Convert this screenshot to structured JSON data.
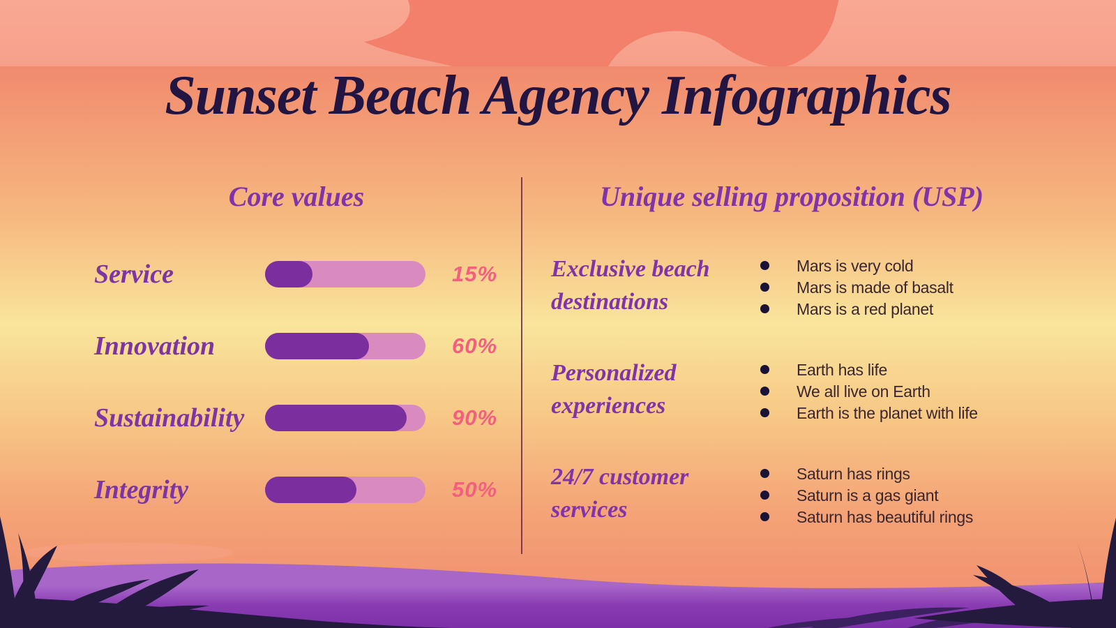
{
  "title": "Sunset Beach Agency Infographics",
  "core_values": {
    "heading": "Core values",
    "rows": [
      {
        "label": "Service",
        "value": 15,
        "percent_label": "15%"
      },
      {
        "label": "Innovation",
        "value": 60,
        "percent_label": "60%"
      },
      {
        "label": "Sustainability",
        "value": 90,
        "percent_label": "90%"
      },
      {
        "label": "Integrity",
        "value": 50,
        "percent_label": "50%"
      }
    ]
  },
  "usp": {
    "heading": "Unique selling proposition (USP)",
    "groups": [
      {
        "title": "Exclusive beach destinations",
        "bullets": [
          "Mars is very cold",
          "Mars is made of basalt",
          "Mars is a red planet"
        ]
      },
      {
        "title": "Personalized experiences",
        "bullets": [
          "Earth has life",
          "We all live on Earth",
          "Earth is the planet with life"
        ]
      },
      {
        "title": "24/7 customer services",
        "bullets": [
          "Saturn has rings",
          "Saturn is a gas giant",
          "Saturn has beautiful rings"
        ]
      }
    ]
  },
  "colors": {
    "title_ink": "#221541",
    "heading_purple": "#8134a8",
    "bar_fill": "#7b2f9e",
    "bar_track": "#d98abf",
    "percent_pink": "#f25f7f",
    "bullet_ink": "#3a262e",
    "bullet_dot": "#1b1335",
    "divider": "#68264f",
    "sea_purple_top": "#a866c9",
    "sea_purple_bottom": "#7c2fa8",
    "silhouette_navy": "#241a3e",
    "sky_band": "#f8a591",
    "sun_cloud": "#f2806a"
  },
  "chart_data": {
    "type": "bar",
    "categories": [
      "Service",
      "Innovation",
      "Sustainability",
      "Integrity"
    ],
    "values": [
      15,
      60,
      90,
      50
    ],
    "title": "Core values",
    "xlabel": "",
    "ylabel": "",
    "xlim": [
      0,
      100
    ],
    "value_format": "percent",
    "orientation": "horizontal",
    "legend": false,
    "grid": false
  }
}
